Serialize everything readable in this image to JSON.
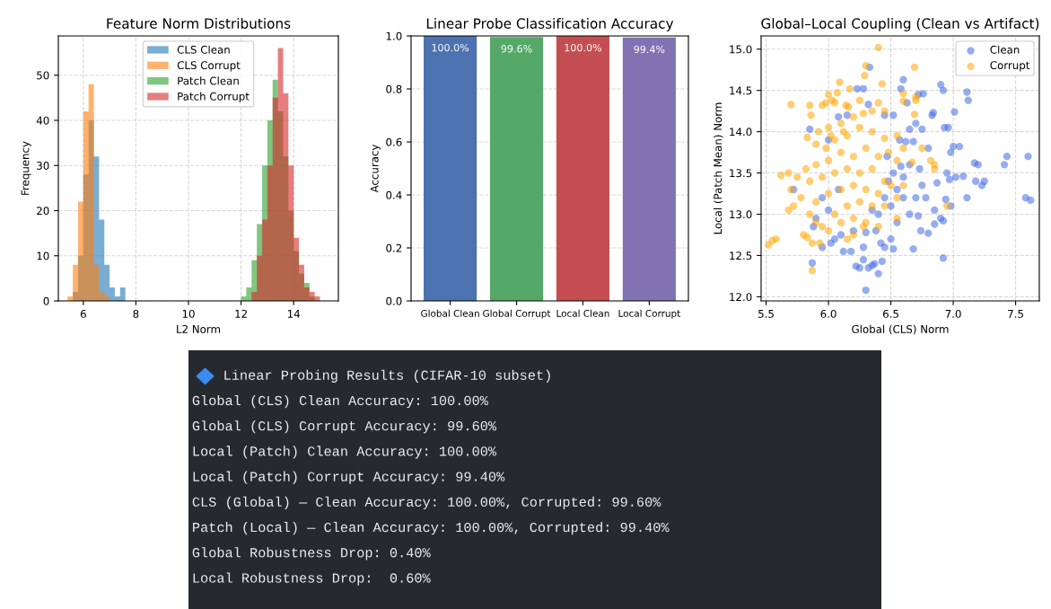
{
  "chart_data": [
    {
      "type": "histogram",
      "title": "Feature Norm Distributions",
      "xlabel": "L2 Norm",
      "ylabel": "Frequency",
      "xlim": [
        5.05,
        15.7
      ],
      "xticks": [
        6,
        8,
        10,
        12,
        14
      ],
      "ylim": [
        0,
        58.7
      ],
      "yticks": [
        0,
        10,
        20,
        30,
        40,
        50
      ],
      "grid": true,
      "legend": "top",
      "bins": [
        5.4,
        5.6,
        5.8,
        6.0,
        6.2,
        6.4,
        6.6,
        6.8,
        7.0,
        7.2,
        7.4,
        7.6,
        7.8,
        8.0,
        8.2,
        8.4,
        8.6,
        8.8,
        9.0,
        9.2,
        9.4,
        9.6,
        9.8,
        10.0,
        10.2,
        10.4,
        10.6,
        10.8,
        11.0,
        11.2,
        11.4,
        11.6,
        11.8,
        12.0,
        12.2,
        12.4,
        12.6,
        12.8,
        13.0,
        13.2,
        13.4,
        13.6,
        13.8,
        14.0,
        14.2,
        14.4,
        14.6,
        14.8,
        15.0
      ],
      "series": [
        {
          "name": "CLS Clean",
          "color": "#1f77b4",
          "values": [
            0,
            2,
            10,
            28,
            40,
            32,
            18,
            8,
            3,
            1,
            3,
            0,
            0,
            0,
            0,
            0,
            0,
            0,
            0,
            0,
            0,
            0,
            0,
            0,
            0,
            0,
            0,
            0,
            0,
            0,
            0,
            0,
            0,
            0,
            0,
            0,
            0,
            0,
            0,
            0,
            0,
            0,
            0,
            0,
            0,
            0,
            0,
            0
          ]
        },
        {
          "name": "CLS Corrupt",
          "color": "#ff7f0e",
          "values": [
            1,
            8,
            22,
            42,
            48,
            8,
            2,
            1,
            0,
            0,
            0,
            0,
            0,
            0,
            0,
            0,
            0,
            0,
            0,
            0,
            0,
            0,
            0,
            0,
            0,
            0,
            0,
            0,
            0,
            0,
            0,
            0,
            0,
            0,
            0,
            0,
            0,
            0,
            0,
            0,
            0,
            0,
            0,
            0,
            0,
            0,
            0,
            0
          ]
        },
        {
          "name": "Patch Clean",
          "color": "#2ca02c",
          "values": [
            0,
            0,
            0,
            0,
            0,
            0,
            0,
            0,
            0,
            0,
            0,
            0,
            0,
            0,
            0,
            0,
            0,
            0,
            0,
            0,
            0,
            0,
            0,
            0,
            0,
            0,
            0,
            0,
            0,
            0,
            0,
            0,
            0,
            1,
            3,
            9,
            17,
            30,
            40,
            49,
            42,
            32,
            20,
            11,
            6,
            4,
            1,
            0
          ]
        },
        {
          "name": "Patch Corrupt",
          "color": "#d62728",
          "values": [
            0,
            0,
            0,
            0,
            0,
            0,
            0,
            0,
            0,
            0,
            0,
            0,
            0,
            0,
            0,
            0,
            0,
            0,
            0,
            0,
            0,
            0,
            0,
            0,
            0,
            0,
            0,
            0,
            0,
            0,
            0,
            0,
            0,
            0,
            0,
            2,
            10,
            18,
            30,
            45,
            56,
            46,
            30,
            14,
            8,
            3,
            2,
            1
          ]
        }
      ]
    },
    {
      "type": "bar",
      "title": "Linear Probe Classification Accuracy",
      "ylabel": "Accuracy",
      "categories": [
        "Global Clean",
        "Global Corrupt",
        "Local Clean",
        "Local Corrupt"
      ],
      "values": [
        1.0,
        0.996,
        1.0,
        0.994
      ],
      "colors": [
        "#4c72b0",
        "#55a868",
        "#c44e52",
        "#8172b2"
      ],
      "value_labels": [
        "100.0%",
        "99.6%",
        "100.0%",
        "99.4%"
      ],
      "ylim": [
        0,
        1.0
      ],
      "yticks": [
        {
          "value": 0,
          "label": "0.0"
        },
        {
          "value": 0.2,
          "label": "0.2"
        },
        {
          "value": 0.4,
          "label": "0.4"
        },
        {
          "value": 0.6,
          "label": "0.6"
        },
        {
          "value": 0.8,
          "label": "0.8"
        },
        {
          "value": 1.0,
          "label": "1.0"
        }
      ],
      "grid": "y"
    },
    {
      "type": "scatter",
      "title": "Global–Local Coupling (Clean vs Artifact)",
      "xlabel": "Global (CLS) Norm",
      "ylabel": "Local (Patch Mean) Norm",
      "xlim": [
        5.46,
        7.69
      ],
      "xticks": [
        5.5,
        {
          "value": 6,
          "label": "6.0"
        },
        6.5,
        {
          "value": 7,
          "label": "7.0"
        },
        7.5
      ],
      "ylim": [
        11.95,
        15.16
      ],
      "yticks": [
        {
          "value": 12,
          "label": "12.0"
        },
        12.5,
        {
          "value": 13,
          "label": "13.0"
        },
        13.5,
        {
          "value": 14,
          "label": "14.0"
        },
        14.5,
        {
          "value": 15,
          "label": "15.0"
        }
      ],
      "grid": true,
      "legend": "top right",
      "marker": "circle",
      "series": [
        {
          "name": "Clean",
          "color": "#4169e1",
          "x": [
            6.33,
            6.23,
            6.28,
            6.32,
            6.6,
            6.58,
            6.63,
            6.72,
            6.76,
            6.9,
            6.92,
            7.11,
            7.12,
            7.01,
            6.83,
            6.84,
            6.52,
            6.15,
            6.08,
            6.45,
            6.7,
            6.75,
            6.93,
            6.96,
            6.65,
            6.57,
            6.62,
            6.68,
            7.0,
            7.05,
            6.98,
            6.8,
            7.43,
            7.6,
            7.41,
            7.17,
            7.2,
            6.95,
            6.97,
            7.02,
            7.08,
            7.18,
            7.25,
            7.23,
            6.87,
            6.75,
            6.73,
            6.65,
            6.6,
            6.55,
            6.5,
            6.6,
            6.7,
            6.78,
            6.94,
            7.11,
            7.58,
            7.62,
            6.98,
            6.85,
            6.65,
            6.72,
            6.9,
            6.92,
            6.85,
            6.8,
            6.74,
            6.55,
            6.5,
            6.45,
            6.42,
            6.52,
            6.68,
            6.92,
            6.43,
            6.37,
            6.28,
            6.22,
            6.25,
            6.32,
            6.35,
            6.4,
            6.3,
            5.87,
            6.12,
            6.18,
            6.28,
            5.95,
            6.02,
            6.05,
            6.1,
            6.2,
            6.3,
            6.38,
            5.88,
            5.9,
            6.0,
            6.35,
            6.4,
            6.45,
            6.48,
            6.52,
            6.47,
            6.58,
            5.85,
            6.0,
            5.95,
            6.08,
            5.72
          ],
          "values": [
            14.78,
            14.52,
            14.52,
            14.33,
            14.63,
            14.52,
            14.35,
            14.45,
            14.46,
            14.57,
            14.5,
            14.48,
            14.38,
            14.24,
            14.2,
            14.23,
            14.2,
            14.2,
            14.18,
            14.2,
            14.1,
            14.03,
            14.05,
            14.05,
            14.03,
            13.9,
            13.88,
            13.88,
            13.82,
            13.82,
            13.75,
            13.8,
            13.7,
            13.7,
            13.6,
            13.62,
            13.6,
            13.5,
            13.42,
            13.45,
            13.46,
            13.4,
            13.4,
            13.35,
            13.38,
            13.35,
            13.55,
            13.6,
            13.45,
            13.3,
            13.1,
            13.2,
            13.2,
            13.2,
            13.18,
            13.2,
            13.2,
            13.17,
            13.1,
            13.05,
            13.0,
            12.98,
            12.95,
            12.92,
            12.88,
            12.77,
            12.8,
            12.9,
            12.7,
            12.6,
            12.65,
            12.58,
            12.58,
            12.47,
            12.43,
            12.4,
            12.45,
            12.37,
            12.35,
            12.35,
            12.38,
            12.28,
            12.08,
            12.41,
            12.55,
            12.55,
            12.6,
            12.6,
            12.65,
            12.7,
            12.75,
            12.8,
            12.78,
            12.8,
            12.85,
            12.95,
            13.05,
            13.05,
            13.0,
            13.2,
            13.4,
            13.5,
            13.7,
            13.58,
            14.03,
            13.9,
            13.2,
            13.3,
            13.3
          ]
        },
        {
          "name": "Corrupt",
          "color": "#ffa500",
          "x": [
            6.4,
            6.3,
            6.29,
            6.43,
            6.69,
            6.09,
            6.07,
            6.17,
            6.0,
            6.03,
            5.95,
            5.98,
            6.05,
            6.14,
            6.16,
            5.7,
            5.85,
            5.86,
            6.25,
            6.4,
            6.6,
            6.7,
            6.7,
            6.6,
            6.69,
            6.45,
            6.35,
            6.28,
            6.2,
            6.1,
            6.0,
            5.92,
            5.83,
            5.9,
            5.98,
            6.05,
            6.15,
            6.25,
            6.35,
            6.45,
            6.55,
            6.6,
            6.55,
            6.48,
            6.4,
            6.3,
            6.2,
            6.1,
            6.0,
            5.9,
            5.82,
            5.75,
            5.62,
            5.68,
            5.7,
            5.78,
            5.72,
            5.68,
            5.85,
            5.95,
            6.05,
            6.15,
            6.25,
            6.35,
            6.45,
            6.5,
            6.6,
            6.4,
            6.3,
            6.2,
            6.1,
            6.0,
            5.9,
            5.85,
            5.9,
            5.95,
            6.05,
            6.15,
            6.25,
            6.35,
            6.45,
            6.55,
            6.4,
            6.3,
            6.2,
            6.1,
            6.0,
            5.8,
            5.83,
            5.87,
            5.93,
            5.52,
            5.55,
            5.58,
            5.87,
            6.15,
            6.2,
            6.28,
            6.95,
            6.82,
            6.85,
            6.75,
            6.85,
            6.67,
            6.55,
            6.12,
            6.02
          ],
          "values": [
            15.02,
            14.8,
            14.68,
            14.58,
            14.78,
            14.6,
            14.47,
            14.52,
            14.45,
            14.38,
            14.32,
            14.35,
            14.35,
            14.32,
            14.3,
            14.33,
            14.32,
            14.2,
            14.38,
            14.35,
            14.46,
            14.42,
            14.38,
            14.37,
            14.21,
            14.25,
            14.25,
            14.22,
            14.18,
            14.1,
            14.05,
            14.0,
            13.93,
            13.85,
            13.8,
            13.9,
            13.95,
            14.05,
            14.0,
            13.92,
            13.95,
            13.8,
            13.65,
            13.75,
            13.7,
            13.8,
            13.7,
            13.75,
            13.65,
            13.6,
            13.55,
            13.45,
            13.47,
            13.5,
            13.3,
            13.2,
            13.1,
            13.05,
            13.4,
            13.45,
            13.5,
            13.55,
            13.5,
            13.55,
            13.4,
            13.35,
            13.35,
            13.25,
            13.3,
            13.35,
            13.3,
            13.25,
            13.15,
            13.0,
            12.9,
            12.85,
            13.0,
            13.1,
            13.15,
            13.1,
            13.1,
            12.95,
            12.85,
            12.9,
            12.95,
            12.9,
            12.8,
            12.75,
            12.72,
            12.65,
            12.65,
            12.63,
            12.68,
            12.7,
            12.32,
            12.7,
            12.75,
            12.85,
            13.1,
            13.65,
            13.55,
            13.8,
            13.6,
            13.63,
            13.2,
            14.0,
            13.95
          ]
        }
      ]
    },
    {
      "type": "other",
      "title": "Linear Probing Results (CIFAR-10 subset)",
      "annotations": [
        "Global (CLS) Clean Accuracy: 100.00%",
        "Global (CLS) Corrupt Accuracy: 99.60%",
        "Local (Patch) Clean Accuracy: 100.00%",
        "Local (Patch) Corrupt Accuracy: 99.40%",
        "CLS (Global) — Clean Accuracy: 100.00%, Corrupted: 99.60%",
        "Patch (Local) — Clean Accuracy: 100.00%, Corrupted: 99.40%",
        "Global Robustness Drop: 0.40%",
        "Local Robustness Drop:  0.60%"
      ]
    }
  ]
}
